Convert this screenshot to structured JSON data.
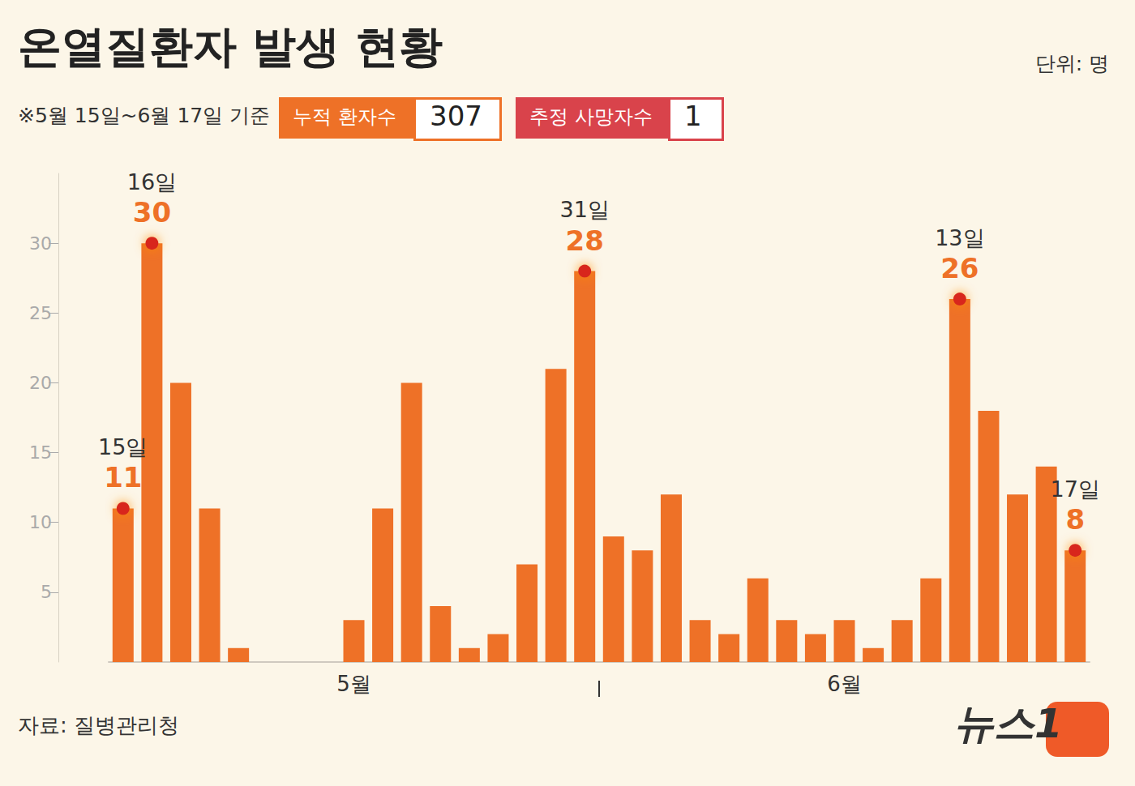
{
  "chart_data": {
    "type": "bar",
    "title": "온열질환자 발생 현황",
    "subtitle": "※5월 15일~6월 17일 기준",
    "unit": "단위: 명",
    "source": "자료: 질병관리청",
    "logo": "뉴스1",
    "summary": [
      {
        "label": "누적 환자수",
        "value": 307,
        "color": "#ee7127"
      },
      {
        "label": "추정 사망자수",
        "value": 1,
        "color": "#d9434b"
      }
    ],
    "categories": [
      null,
      null,
      null,
      null,
      null,
      null,
      null,
      null,
      "5월",
      null,
      null,
      null,
      null,
      null,
      null,
      null,
      null,
      null,
      null,
      null,
      null,
      null,
      null,
      null,
      null,
      "6월",
      null,
      null,
      null,
      null,
      null,
      null,
      null,
      null
    ],
    "values": [
      11,
      30,
      20,
      11,
      1,
      0,
      0,
      0,
      3,
      11,
      20,
      4,
      1,
      2,
      7,
      21,
      28,
      9,
      8,
      12,
      3,
      2,
      6,
      3,
      2,
      3,
      1,
      3,
      6,
      26,
      18,
      12,
      14,
      8
    ],
    "color": "#ee7127",
    "highlights": [
      {
        "index": 0,
        "label": "15일",
        "value": 11
      },
      {
        "index": 1,
        "label": "16일",
        "value": 30
      },
      {
        "index": 16,
        "label": "31일",
        "value": 28
      },
      {
        "index": 29,
        "label": "13일",
        "value": 26
      },
      {
        "index": 33,
        "label": "17일",
        "value": 8
      }
    ],
    "ylim": [
      0,
      35
    ],
    "yticks": [
      5,
      10,
      15,
      20,
      25,
      30
    ],
    "grid": false
  }
}
